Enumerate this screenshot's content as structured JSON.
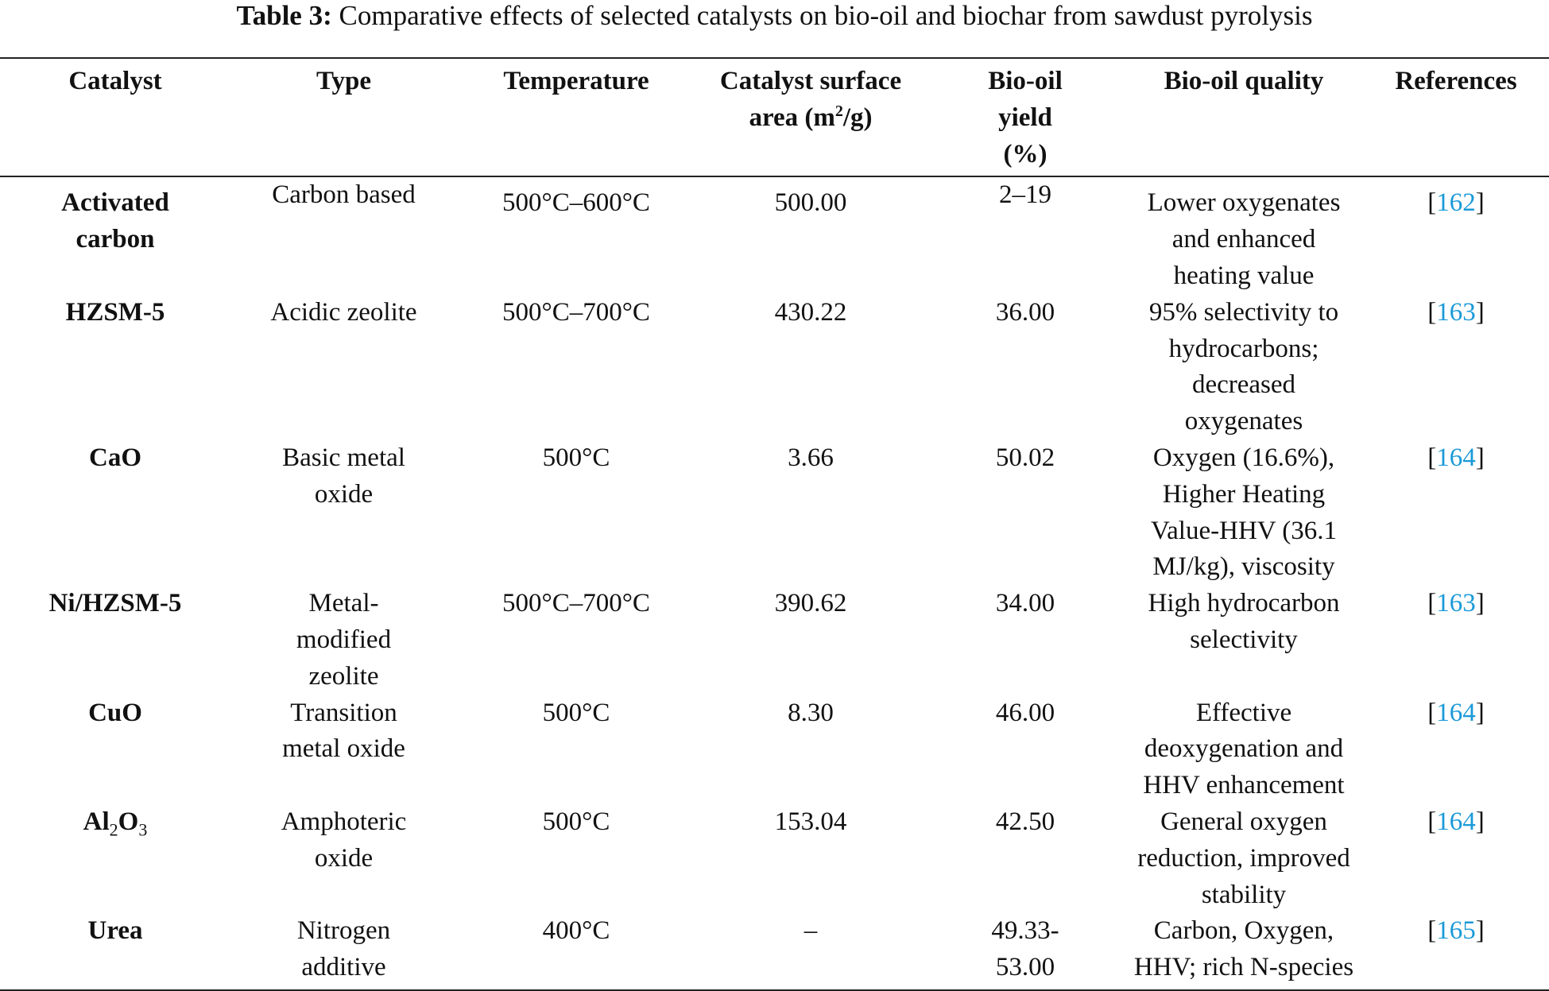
{
  "title": {
    "label": "Table 3:",
    "text": " Comparative effects of selected catalysts on bio-oil and biochar from sawdust pyrolysis"
  },
  "headers": {
    "catalyst": "Catalyst",
    "type": "Type",
    "temperature": "Temperature",
    "area_pre": "Catalyst surface area (m",
    "area_sup": "2",
    "area_post": "/g)",
    "yield": "Bio-oil yield (%)",
    "quality": "Bio-oil quality",
    "references": "References"
  },
  "rows": [
    {
      "catalyst": "Activated carbon",
      "type": "Carbon based",
      "temperature": "500°C–600°C",
      "area": "500.00",
      "yield": "2–19",
      "quality": "Lower oxygenates and enhanced heating value",
      "ref": "162"
    },
    {
      "catalyst": "HZSM-5",
      "type": "Acidic zeolite",
      "temperature": "500°C–700°C",
      "area": "430.22",
      "yield": "36.00",
      "quality": "95% selectivity to hydrocarbons; decreased oxygenates",
      "ref": "163"
    },
    {
      "catalyst": "CaO",
      "type": "Basic metal oxide",
      "temperature": "500°C",
      "area": "3.66",
      "yield": "50.02",
      "quality": "Oxygen (16.6%), Higher Heating Value-HHV (36.1 MJ/kg), viscosity",
      "ref": "164"
    },
    {
      "catalyst": "Ni/HZSM-5",
      "type": "Metal-modified zeolite",
      "temperature": "500°C–700°C",
      "area": "390.62",
      "yield": "34.00",
      "quality": "High hydrocarbon selectivity",
      "ref": "163"
    },
    {
      "catalyst": "CuO",
      "type": "Transition metal oxide",
      "temperature": "500°C",
      "area": "8.30",
      "yield": "46.00",
      "quality": "Effective deoxygenation and HHV enhancement",
      "ref": "164"
    },
    {
      "catalyst_parts": [
        "Al",
        "2",
        "O",
        "3"
      ],
      "type": "Amphoteric oxide",
      "temperature": "500°C",
      "area": "153.04",
      "yield": "42.50",
      "quality": "General oxygen reduction, improved stability",
      "ref": "164"
    },
    {
      "catalyst": "Urea",
      "type": "Nitrogen additive",
      "temperature": "400°C",
      "area": "–",
      "yield": "49.33-53.00",
      "quality": "Carbon, Oxygen, HHV; rich N-species",
      "ref": "165"
    }
  ],
  "colors": {
    "link": "#1b9ad8",
    "rule": "#222222"
  }
}
